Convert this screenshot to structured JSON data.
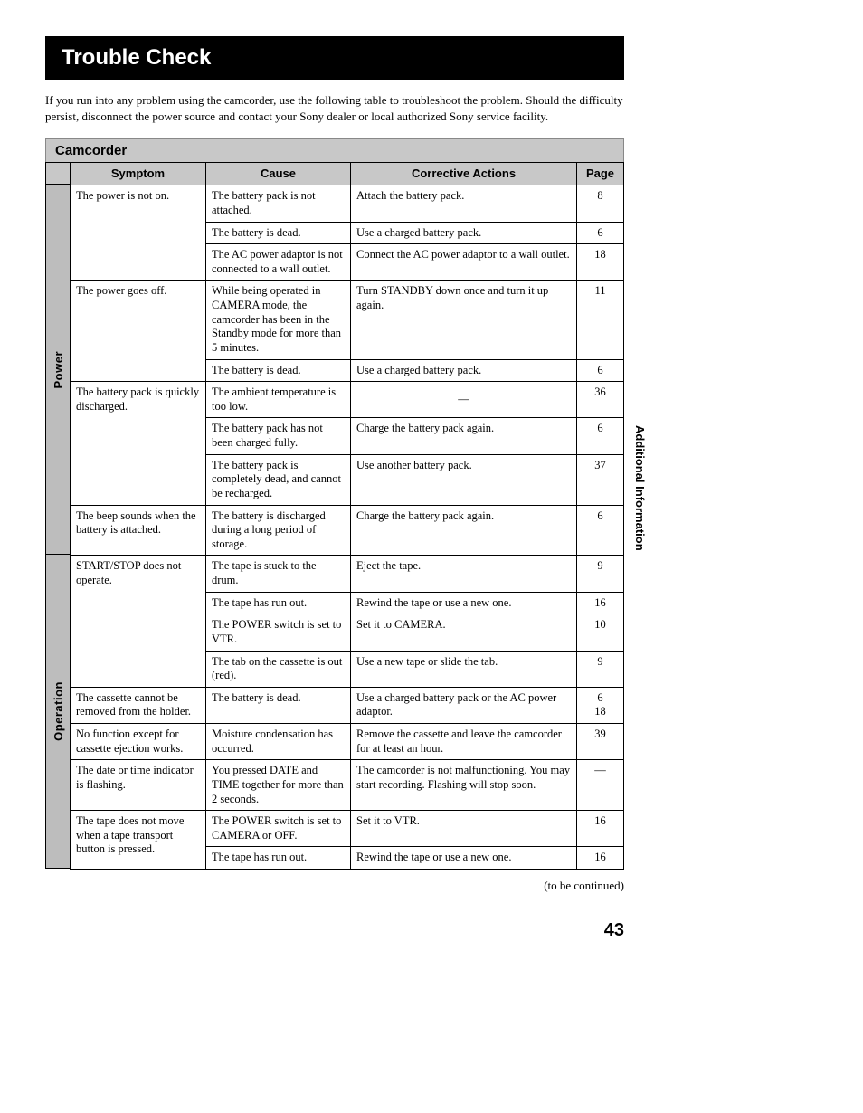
{
  "title": "Trouble Check",
  "intro": "If you run into any problem using the camcorder, use the following table to troubleshoot the problem. Should the difficulty persist, disconnect the power source and contact your Sony dealer or local authorized Sony service facility.",
  "section": "Camcorder",
  "side_label": "Additional Information",
  "continued": "(to be continued)",
  "page_number": "43",
  "headers": {
    "symptom": "Symptom",
    "cause": "Cause",
    "action": "Corrective Actions",
    "page": "Page"
  },
  "categories": [
    {
      "label": "Power",
      "rowspan": 9
    },
    {
      "label": "Operation",
      "rowspan": 9
    }
  ],
  "rows": [
    {
      "symptom": "The power is not on.",
      "symspan": 3,
      "cause": "The battery pack is not attached.",
      "action": "Attach the battery pack.",
      "page": "8"
    },
    {
      "cause": "The battery is dead.",
      "action": "Use a charged battery pack.",
      "page": "6"
    },
    {
      "cause": "The AC power adaptor is not connected to a wall outlet.",
      "action": "Connect the AC power adaptor to a wall outlet.",
      "page": "18"
    },
    {
      "symptom": "The power goes off.",
      "symspan": 2,
      "cause": "While being operated in CAMERA mode, the camcorder has been in the Standby mode for more than 5 minutes.",
      "action": "Turn STANDBY down once and turn it up again.",
      "page": "11"
    },
    {
      "cause": "The battery is dead.",
      "action": "Use a charged battery pack.",
      "page": "6"
    },
    {
      "symptom": "The battery pack is quickly discharged.",
      "symspan": 3,
      "cause": "The ambient temperature is too low.",
      "action": "—",
      "action_center": true,
      "page": "36"
    },
    {
      "cause": "The battery pack has not been charged fully.",
      "action": "Charge the battery pack again.",
      "page": "6"
    },
    {
      "cause": "The battery pack is completely dead, and cannot be recharged.",
      "action": "Use another battery pack.",
      "page": "37"
    },
    {
      "symptom": "The beep sounds when the battery is attached.",
      "symspan": 1,
      "cause": "The battery is discharged during a long period of storage.",
      "action": "Charge the battery pack again.",
      "page": "6"
    },
    {
      "symptom": "START/STOP does not operate.",
      "symspan": 4,
      "cause": "The tape is stuck to the drum.",
      "action": "Eject the tape.",
      "page": "9"
    },
    {
      "cause": "The tape has run out.",
      "action": "Rewind the tape or use a new one.",
      "page": "16"
    },
    {
      "cause": "The POWER switch is set to VTR.",
      "action": "Set it to CAMERA.",
      "page": "10"
    },
    {
      "cause": "The tab on the cassette is out (red).",
      "action": "Use a new tape or slide the tab.",
      "page": "9"
    },
    {
      "symptom": "The cassette cannot be removed from the holder.",
      "symspan": 1,
      "cause": "The battery is dead.",
      "action": "Use a charged battery pack or the AC power adaptor.",
      "page": "6\n18"
    },
    {
      "symptom": "No function except for cassette ejection works.",
      "symspan": 1,
      "cause": "Moisture condensation has occurred.",
      "action": "Remove the cassette and leave the camcorder for at least an hour.",
      "page": "39"
    },
    {
      "symptom": "The date or time indicator is flashing.",
      "symspan": 1,
      "cause": "You pressed DATE and TIME together for more than 2 seconds.",
      "action": "The camcorder is not malfunctioning. You may start recording. Flashing will stop soon.",
      "page": "—"
    },
    {
      "symptom": "The tape does not move when a tape transport button is pressed.",
      "symspan": 2,
      "cause": "The POWER switch is set to CAMERA or OFF.",
      "action": "Set it to VTR.",
      "page": "16"
    },
    {
      "cause": "The tape has run out.",
      "action": "Rewind the tape or use a new one.",
      "page": "16"
    }
  ]
}
